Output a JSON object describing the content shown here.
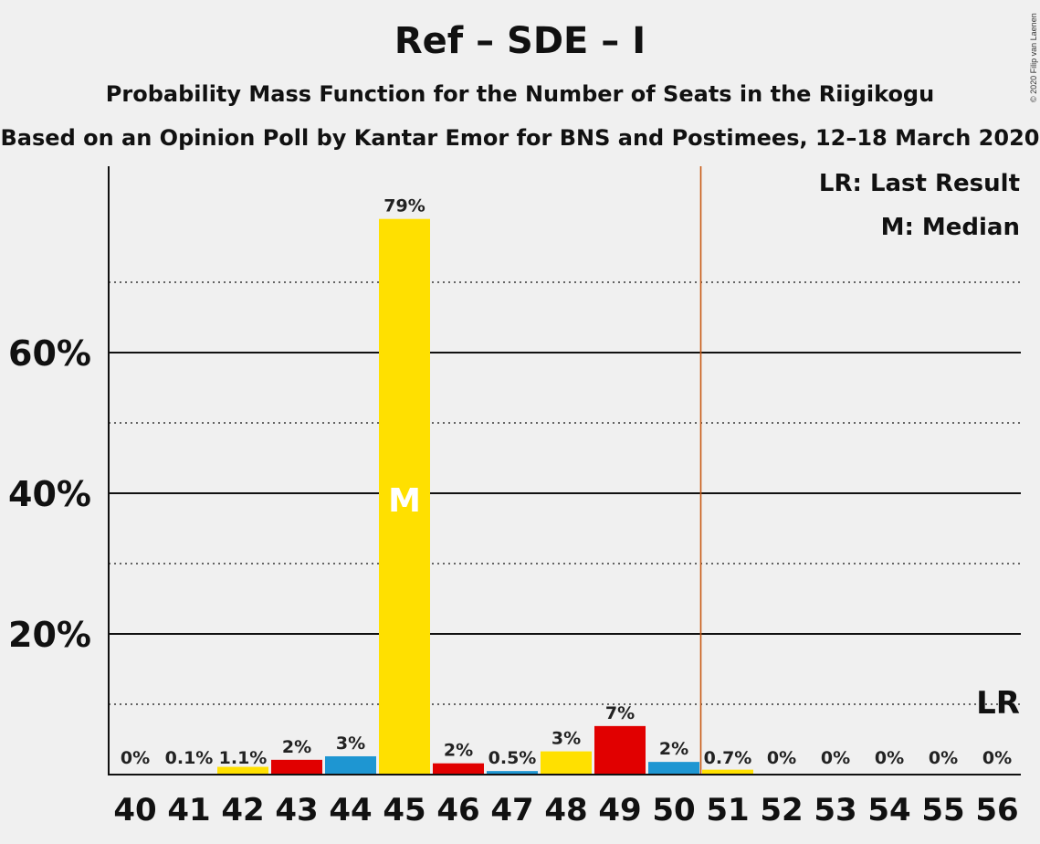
{
  "title": "Ref – SDE – I",
  "subtitle": "Probability Mass Function for the Number of Seats in the Riigikogu",
  "subtitle2": "Based on an Opinion Poll by Kantar Emor for BNS and Postimees, 12–18 March 2020",
  "copyright": "© 2020 Filip van Laenen",
  "legend": {
    "last_result": "LR: Last Result",
    "median": "M: Median"
  },
  "colors": {
    "yellow": "#FFE000",
    "red": "#E10000",
    "blue": "#1E96D2",
    "last_result_line": "#C85A14",
    "background": "#f0f0f0"
  },
  "chart_data": {
    "type": "bar",
    "categories": [
      "40",
      "41",
      "42",
      "43",
      "44",
      "45",
      "46",
      "47",
      "48",
      "49",
      "50",
      "51",
      "52",
      "53",
      "54",
      "55",
      "56"
    ],
    "values": [
      0,
      0.1,
      1.1,
      2,
      3,
      79,
      2,
      0.5,
      3,
      7,
      2,
      0.7,
      0,
      0,
      0,
      0,
      0
    ],
    "bar_values": [
      0,
      0.1,
      1.1,
      2.1,
      2.6,
      79,
      1.6,
      0.5,
      3.3,
      6.9,
      1.8,
      0.7,
      0,
      0,
      0,
      0,
      0
    ],
    "data_labels": [
      "0%",
      "0.1%",
      "1.1%",
      "2%",
      "3%",
      "79%",
      "2%",
      "0.5%",
      "3%",
      "7%",
      "2%",
      "0.7%",
      "0%",
      "0%",
      "0%",
      "0%",
      "0%"
    ],
    "bar_colors": [
      "yellow",
      "yellow",
      "yellow",
      "red",
      "blue",
      "yellow",
      "red",
      "blue",
      "yellow",
      "red",
      "blue",
      "yellow",
      "yellow",
      "red",
      "blue",
      "yellow",
      "red"
    ],
    "ylim": [
      0,
      86
    ],
    "yticks": [
      20,
      40,
      60
    ],
    "ytick_labels": [
      "20%",
      "40%",
      "60%"
    ],
    "minor_gridlines": [
      10,
      30,
      50,
      70
    ],
    "median_seat": "45",
    "median_label": "M",
    "majority_line_after": "50",
    "last_result_seat": "56",
    "last_result_label": "LR"
  }
}
